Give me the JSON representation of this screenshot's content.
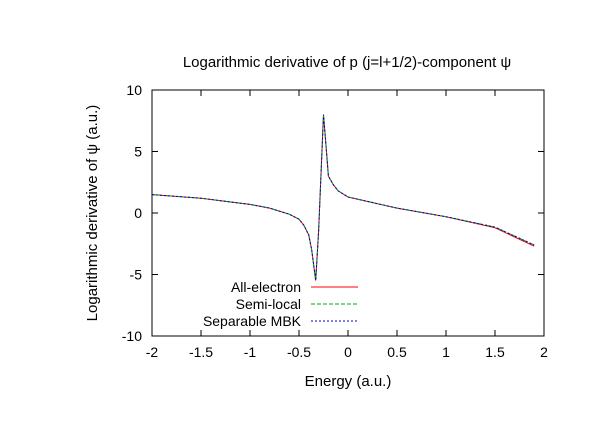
{
  "chart_data": {
    "type": "line",
    "title": "Logarithmic derivative of p (j=l+1/2)-component ψ",
    "xlabel": "Energy (a.u.)",
    "ylabel": "Logarithmic derivative of ψ (a.u.)",
    "xlim": [
      -2,
      2
    ],
    "ylim": [
      -10,
      10
    ],
    "x_ticks": [
      "-2",
      "-1.5",
      "-1",
      "-0.5",
      "0",
      "0.5",
      "1",
      "1.5",
      "2"
    ],
    "y_ticks": [
      "10",
      "5",
      "0",
      "-5",
      "-10"
    ],
    "grid": false,
    "legend_position": "bottom-left",
    "series": [
      {
        "name": "All-electron",
        "color": "#ff0000",
        "dash": "solid",
        "x": [
          -2,
          -1.5,
          -1,
          -0.8,
          -0.6,
          -0.5,
          -0.45,
          -0.4,
          -0.37,
          -0.33,
          -0.3,
          -0.25,
          -0.23,
          -0.2,
          -0.15,
          -0.1,
          0,
          0.5,
          1,
          1.5,
          1.9
        ],
        "y": [
          1.5,
          1.2,
          0.7,
          0.4,
          -0.1,
          -0.5,
          -1.0,
          -1.8,
          -3.0,
          -5.5,
          -1.5,
          8.0,
          6.0,
          3.0,
          2.3,
          1.8,
          1.3,
          0.4,
          -0.3,
          -1.2,
          -2.7
        ]
      },
      {
        "name": "Semi-local",
        "color": "#00aa00",
        "dash": "4,2",
        "x": [
          -2,
          -1.5,
          -1,
          -0.8,
          -0.6,
          -0.5,
          -0.45,
          -0.4,
          -0.37,
          -0.33,
          -0.3,
          -0.25,
          -0.23,
          -0.2,
          -0.15,
          -0.1,
          0,
          0.5,
          1,
          1.5,
          1.9
        ],
        "y": [
          1.5,
          1.2,
          0.7,
          0.4,
          -0.1,
          -0.5,
          -1.0,
          -1.8,
          -3.0,
          -5.5,
          -1.5,
          8.0,
          6.0,
          3.0,
          2.3,
          1.8,
          1.3,
          0.4,
          -0.3,
          -1.15,
          -2.6
        ]
      },
      {
        "name": "Separable MBK",
        "color": "#0000cc",
        "dash": "2,2",
        "x": [
          -2,
          -1.5,
          -1,
          -0.8,
          -0.6,
          -0.5,
          -0.45,
          -0.4,
          -0.37,
          -0.33,
          -0.3,
          -0.25,
          -0.23,
          -0.2,
          -0.15,
          -0.1,
          0,
          0.5,
          1,
          1.5,
          1.9
        ],
        "y": [
          1.5,
          1.2,
          0.7,
          0.4,
          -0.1,
          -0.5,
          -1.0,
          -1.8,
          -3.0,
          -5.5,
          -1.5,
          8.0,
          6.0,
          3.0,
          2.3,
          1.8,
          1.3,
          0.4,
          -0.3,
          -1.15,
          -2.6
        ]
      }
    ]
  }
}
